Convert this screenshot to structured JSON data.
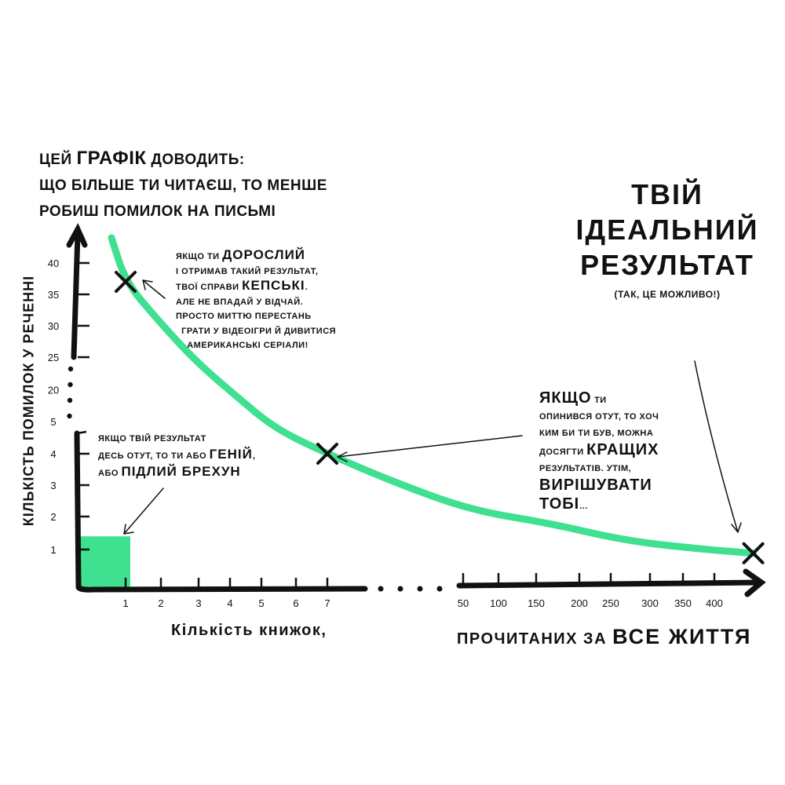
{
  "chart_data": {
    "type": "line",
    "title_lines": [
      [
        {
          "text": "цей ",
          "big": false
        },
        {
          "text": "ГРАФІК",
          "big": true
        },
        {
          "text": " доводить:",
          "big": false
        }
      ],
      [
        {
          "text": "що більше ти читаєш, то менше",
          "big": false
        }
      ],
      [
        {
          "text": "робиш помилок на письмі",
          "big": false
        }
      ]
    ],
    "ylabel": "Кількість помилок у реченні",
    "xlabel_left": "Кількість книжок,",
    "xlabel_right": [
      {
        "text": "прочитаних за ",
        "big": false
      },
      {
        "text": "ВСЕ ЖИТТЯ",
        "big": true
      }
    ],
    "y_ticks": [
      "1",
      "2",
      "3",
      "4",
      "5",
      "20",
      "25",
      "30",
      "35",
      "40"
    ],
    "x_ticks_lower": [
      "1",
      "2",
      "3",
      "4",
      "5",
      "6",
      "7"
    ],
    "x_ticks_upper": [
      "50",
      "100",
      "150",
      "200",
      "250",
      "300",
      "350",
      "400"
    ],
    "axis_breaks": {
      "x": [
        7,
        50
      ],
      "y": [
        5,
        25
      ]
    },
    "grid": false,
    "curve_color": "#3fe08f",
    "series": [
      {
        "x": [
          0.7,
          1,
          1.9,
          2.9,
          4.2,
          5.4,
          7,
          28,
          61,
          165,
          272,
          387,
          462
        ],
        "y": [
          44,
          37,
          31,
          24,
          13,
          4.8,
          4,
          3.1,
          2.2,
          1.8,
          1.25,
          1.0,
          0.9
        ]
      }
    ],
    "marked_points": [
      {
        "x": 1,
        "y": 37
      },
      {
        "x": 7,
        "y": 4
      },
      {
        "x": 462,
        "y": 0.9
      }
    ],
    "highlight_region": {
      "x": [
        0,
        1
      ],
      "y": [
        0,
        1.4
      ],
      "color": "#3fe08f"
    },
    "annotations": {
      "adult": [
        [
          {
            "text": "якщо ти ",
            "big": false
          },
          {
            "text": "ДОРОСЛИЙ",
            "big": true
          }
        ],
        [
          {
            "text": "і отримав такий результат,",
            "big": false
          }
        ],
        [
          {
            "text": "твої справи ",
            "big": false
          },
          {
            "text": "КЕПСЬКІ",
            "big": true
          },
          {
            "text": ".",
            "big": false
          }
        ],
        [
          {
            "text": "але не впадай у відчай.",
            "big": false
          }
        ],
        [
          {
            "text": "просто миттю перестань",
            "big": false
          }
        ],
        [
          {
            "text": "  грати у відеоігри й дивитися",
            "big": false
          }
        ],
        [
          {
            "text": "    американські серіали!",
            "big": false
          }
        ]
      ],
      "genius": [
        [
          {
            "text": "якщо твій результат",
            "big": false
          }
        ],
        [
          {
            "text": "десь отут, то ти або ",
            "big": false
          },
          {
            "text": "ГЕНІЙ",
            "big": true
          },
          {
            "text": ",",
            "big": false
          }
        ],
        [
          {
            "text": "або ",
            "big": false
          },
          {
            "text": "ПІДЛИЙ БРЕХУН",
            "big": true
          }
        ]
      ],
      "middle": [
        [
          {
            "text": "ЯКЩО",
            "big": true
          },
          {
            "text": " ти",
            "big": false
          }
        ],
        [
          {
            "text": "опинився отут, то хоч",
            "big": false
          }
        ],
        [
          {
            "text": "ким би ти був, можна",
            "big": false
          }
        ],
        [
          {
            "text": "досягти ",
            "big": false
          },
          {
            "text": "КРАЩИХ",
            "big": true
          }
        ],
        [
          {
            "text": "результатів. утім,",
            "big": false
          }
        ],
        [
          {
            "text": "ВИРІШУВАТИ",
            "big": true
          }
        ],
        [
          {
            "text": "ТОБІ",
            "big": true
          },
          {
            "text": "...",
            "big": false
          }
        ]
      ],
      "ideal": [
        "Твій",
        "ідеальний",
        "результат",
        "(так, це можливо!)"
      ]
    }
  }
}
